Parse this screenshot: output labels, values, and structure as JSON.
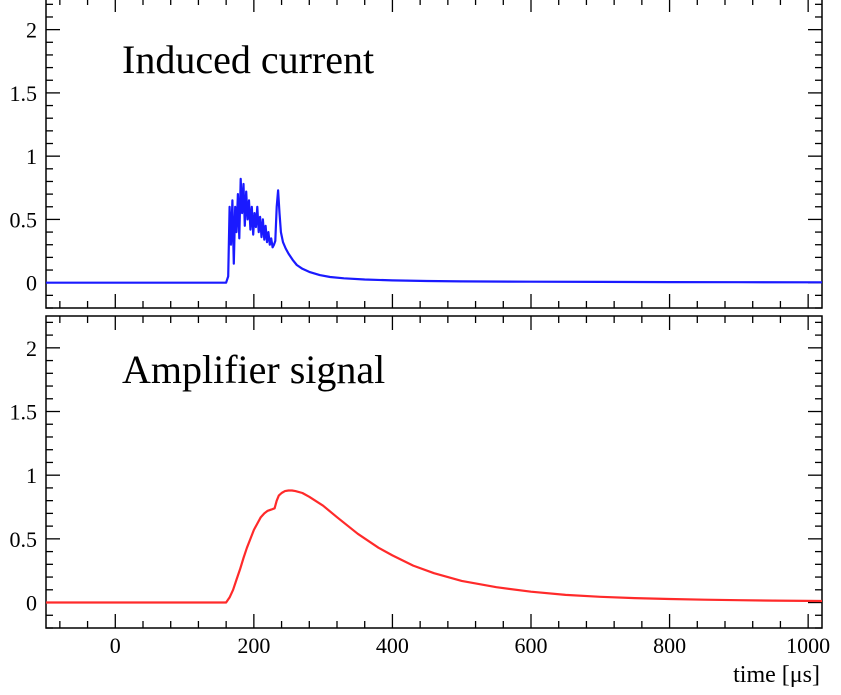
{
  "chart_data": [
    {
      "type": "line",
      "title": "Induced current",
      "xlabel": "",
      "ylabel": "",
      "xlim": [
        -100,
        1020
      ],
      "ylim": [
        -0.2,
        2.25
      ],
      "grid": false,
      "x_ticks": [
        0,
        200,
        400,
        600,
        800,
        1000
      ],
      "y_ticks": [
        0,
        0.5,
        1,
        1.5,
        2
      ],
      "y_tick_labels": [
        "0",
        "0.5",
        "1",
        "1.5",
        "2"
      ],
      "color": "#1a1aff",
      "series": [
        {
          "x": [
            -100,
            0,
            100,
            160,
            163,
            165,
            167,
            169,
            171,
            173,
            175,
            177,
            179,
            181,
            183,
            185,
            187,
            189,
            191,
            193,
            195,
            197,
            199,
            201,
            203,
            205,
            207,
            209,
            211,
            213,
            215,
            217,
            219,
            221,
            223,
            225,
            227,
            229,
            231,
            233,
            235,
            237,
            239,
            242,
            246,
            250,
            256,
            262,
            270,
            280,
            295,
            310,
            330,
            360,
            400,
            450,
            500,
            600,
            700,
            800,
            900,
            1020
          ],
          "y": [
            0,
            0,
            0,
            0,
            0.05,
            0.6,
            0.3,
            0.65,
            0.15,
            0.6,
            0.4,
            0.7,
            0.35,
            0.82,
            0.55,
            0.78,
            0.45,
            0.72,
            0.5,
            0.65,
            0.42,
            0.6,
            0.38,
            0.55,
            0.44,
            0.6,
            0.4,
            0.52,
            0.36,
            0.5,
            0.34,
            0.45,
            0.32,
            0.4,
            0.3,
            0.35,
            0.28,
            0.3,
            0.33,
            0.6,
            0.73,
            0.55,
            0.4,
            0.32,
            0.27,
            0.23,
            0.18,
            0.14,
            0.11,
            0.085,
            0.06,
            0.045,
            0.035,
            0.025,
            0.018,
            0.013,
            0.01,
            0.008,
            0.006,
            0.005,
            0.004,
            0.003
          ]
        }
      ]
    },
    {
      "type": "line",
      "title": "Amplifier signal",
      "xlabel": "time [μs]",
      "ylabel": "",
      "xlim": [
        -100,
        1020
      ],
      "ylim": [
        -0.2,
        2.25
      ],
      "grid": false,
      "x_ticks": [
        0,
        200,
        400,
        600,
        800,
        1000
      ],
      "x_tick_labels": [
        "0",
        "200",
        "400",
        "600",
        "800",
        "1000"
      ],
      "y_ticks": [
        0,
        0.5,
        1,
        1.5,
        2
      ],
      "y_tick_labels": [
        "0",
        "0.5",
        "1",
        "1.5",
        "2"
      ],
      "color": "#ff2a2a",
      "series": [
        {
          "x": [
            -100,
            0,
            100,
            160,
            165,
            170,
            175,
            180,
            185,
            190,
            195,
            200,
            205,
            210,
            215,
            220,
            225,
            230,
            233,
            236,
            240,
            245,
            250,
            255,
            260,
            270,
            280,
            300,
            320,
            350,
            380,
            400,
            430,
            460,
            500,
            550,
            600,
            650,
            700,
            750,
            800,
            850,
            900,
            950,
            1020
          ],
          "y": [
            0,
            0,
            0,
            0,
            0.04,
            0.1,
            0.18,
            0.26,
            0.35,
            0.43,
            0.5,
            0.57,
            0.62,
            0.67,
            0.7,
            0.72,
            0.73,
            0.74,
            0.8,
            0.84,
            0.86,
            0.875,
            0.88,
            0.88,
            0.875,
            0.86,
            0.83,
            0.76,
            0.67,
            0.54,
            0.43,
            0.37,
            0.29,
            0.23,
            0.17,
            0.12,
            0.085,
            0.06,
            0.045,
            0.035,
            0.028,
            0.022,
            0.018,
            0.015,
            0.012
          ]
        }
      ]
    }
  ]
}
